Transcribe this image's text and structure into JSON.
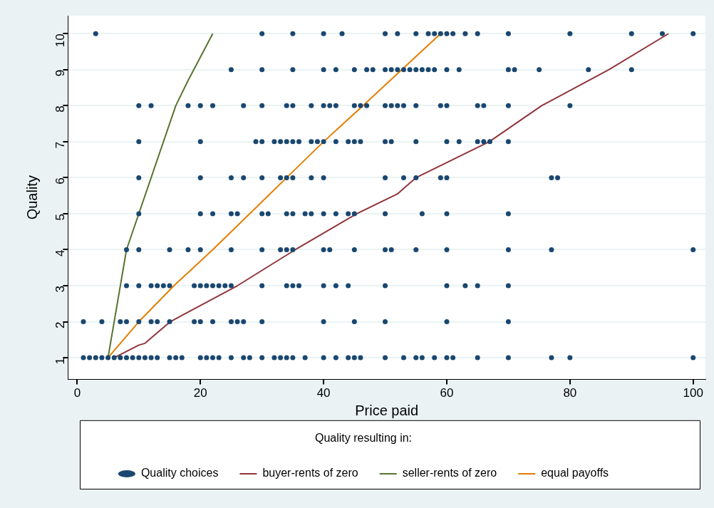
{
  "chart_data": {
    "type": "scatter",
    "xlabel": "Price paid",
    "ylabel": "Quality",
    "legend_title": "Quality resulting in:",
    "xlim": [
      -1.5,
      102
    ],
    "xticks": [
      0,
      20,
      40,
      60,
      80,
      100
    ],
    "ylim": [
      0.4,
      10.5
    ],
    "yticks": [
      1,
      2,
      3,
      4,
      5,
      6,
      7,
      8,
      9,
      10
    ],
    "grid": "y",
    "legend": "bottom",
    "series": [
      {
        "name": "Quality choices",
        "marker": "circle",
        "color": "#1a476f",
        "x": [
          3,
          30,
          35,
          40,
          43,
          50,
          52,
          55,
          57,
          58,
          59,
          60,
          61,
          63,
          65,
          70,
          80,
          90,
          95,
          100,
          25,
          30,
          35,
          40,
          42,
          45,
          47,
          48,
          50,
          51,
          52,
          53,
          54,
          55,
          56,
          57,
          58,
          60,
          62,
          70,
          71,
          75,
          83,
          90,
          10,
          12,
          18,
          20,
          22,
          27,
          30,
          34,
          35,
          38,
          40,
          41,
          42,
          45,
          46,
          47,
          50,
          51,
          52,
          53,
          55,
          59,
          60,
          65,
          66,
          70,
          80,
          10,
          20,
          29,
          30,
          32,
          33,
          34,
          35,
          36,
          38,
          39,
          40,
          42,
          44,
          45,
          46,
          50,
          51,
          55,
          60,
          62,
          65,
          66,
          67,
          70,
          10,
          20,
          25,
          27,
          30,
          33,
          34,
          35,
          38,
          40,
          50,
          53,
          55,
          59,
          60,
          77,
          78,
          10,
          20,
          22,
          25,
          26,
          30,
          31,
          34,
          35,
          37,
          38,
          40,
          42,
          44,
          45,
          50,
          56,
          60,
          70,
          8,
          10,
          15,
          18,
          20,
          25,
          30,
          33,
          34,
          35,
          40,
          41,
          45,
          50,
          51,
          55,
          60,
          70,
          77,
          100,
          8,
          10,
          12,
          13,
          14,
          15,
          19,
          20,
          21,
          22,
          23,
          24,
          25,
          30,
          34,
          35,
          36,
          40,
          42,
          44,
          50,
          60,
          63,
          65,
          70,
          1,
          4,
          7,
          8,
          10,
          12,
          13,
          15,
          19,
          20,
          22,
          25,
          26,
          27,
          30,
          40,
          45,
          50,
          60,
          70,
          1,
          2,
          3,
          4,
          5,
          6,
          7,
          8,
          9,
          10,
          11,
          12,
          13,
          15,
          16,
          17,
          20,
          21,
          22,
          23,
          25,
          27,
          28,
          30,
          32,
          33,
          34,
          35,
          37,
          40,
          42,
          44,
          45,
          46,
          50,
          53,
          55,
          56,
          58,
          60,
          61,
          65,
          70,
          77,
          80,
          100
        ],
        "values": [
          10,
          10,
          10,
          10,
          10,
          10,
          10,
          10,
          10,
          10,
          10,
          10,
          10,
          10,
          10,
          10,
          10,
          10,
          10,
          10,
          9,
          9,
          9,
          9,
          9,
          9,
          9,
          9,
          9,
          9,
          9,
          9,
          9,
          9,
          9,
          9,
          9,
          9,
          9,
          9,
          9,
          9,
          9,
          9,
          8,
          8,
          8,
          8,
          8,
          8,
          8,
          8,
          8,
          8,
          8,
          8,
          8,
          8,
          8,
          8,
          8,
          8,
          8,
          8,
          8,
          8,
          8,
          8,
          8,
          8,
          8,
          7,
          7,
          7,
          7,
          7,
          7,
          7,
          7,
          7,
          7,
          7,
          7,
          7,
          7,
          7,
          7,
          7,
          7,
          7,
          7,
          7,
          7,
          7,
          7,
          7,
          6,
          6,
          6,
          6,
          6,
          6,
          6,
          6,
          6,
          6,
          6,
          6,
          6,
          6,
          6,
          6,
          6,
          5,
          5,
          5,
          5,
          5,
          5,
          5,
          5,
          5,
          5,
          5,
          5,
          5,
          5,
          5,
          5,
          5,
          5,
          5,
          4,
          4,
          4,
          4,
          4,
          4,
          4,
          4,
          4,
          4,
          4,
          4,
          4,
          4,
          4,
          4,
          4,
          4,
          4,
          4,
          3,
          3,
          3,
          3,
          3,
          3,
          3,
          3,
          3,
          3,
          3,
          3,
          3,
          3,
          3,
          3,
          3,
          3,
          3,
          3,
          3,
          3,
          3,
          3,
          3,
          2,
          2,
          2,
          2,
          2,
          2,
          2,
          2,
          2,
          2,
          2,
          2,
          2,
          2,
          2,
          2,
          2,
          2,
          2,
          2,
          1,
          1,
          1,
          1,
          1,
          1,
          1,
          1,
          1,
          1,
          1,
          1,
          1,
          1,
          1,
          1,
          1,
          1,
          1,
          1,
          1,
          1,
          1,
          1,
          1,
          1,
          1,
          1,
          1,
          1,
          1,
          1,
          1,
          1,
          1,
          1,
          1,
          1,
          1,
          1,
          1,
          1,
          1,
          1,
          1,
          1
        ]
      },
      {
        "name": "buyer-rents of zero",
        "type": "line",
        "color": "#90353b",
        "x": [
          6,
          10,
          11,
          15.1,
          26,
          35.4,
          45.4,
          52,
          53,
          55,
          66.9,
          75.4,
          86.3,
          96
        ],
        "values": [
          1,
          1.35,
          1.4,
          2,
          3,
          4,
          5,
          5.55,
          5.7,
          6,
          7,
          8,
          9,
          10
        ]
      },
      {
        "name": "seller-rents of zero",
        "type": "line",
        "color": "#55752f",
        "x": [
          5,
          8,
          16,
          18,
          22
        ],
        "values": [
          1,
          4,
          8,
          8.7,
          10
        ]
      },
      {
        "name": "equal payoffs",
        "type": "line",
        "color": "#e37e00",
        "x": [
          5,
          10,
          15.7,
          22,
          28,
          34,
          40,
          46.4,
          52.7,
          59
        ],
        "values": [
          1,
          2,
          3,
          4,
          5,
          6,
          7,
          8,
          9,
          10
        ]
      }
    ]
  }
}
